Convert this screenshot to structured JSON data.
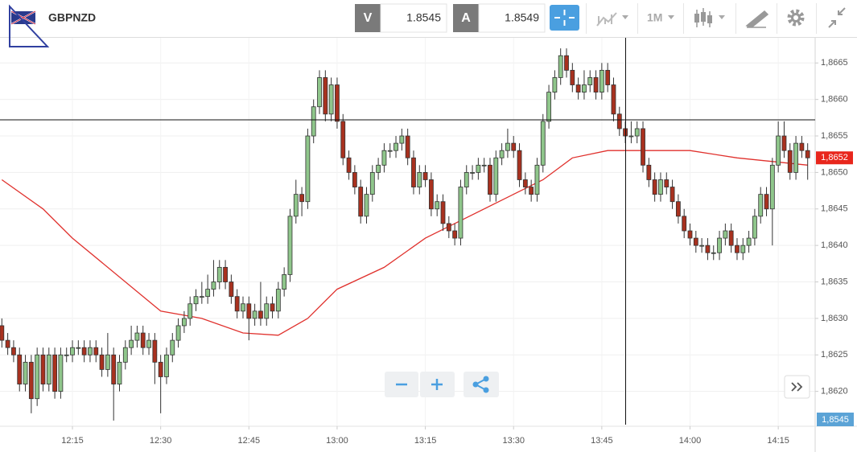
{
  "toolbar": {
    "symbol": "GBPNZD",
    "bid_label": "V",
    "bid": 1.8545,
    "ask_label": "A",
    "ask": 1.8549,
    "timeframe": "1M"
  },
  "bid_tag": "1,8545",
  "chart_data": {
    "type": "candlestick",
    "up_color": "#8fc68b",
    "down_color": "#a8311f",
    "x": [
      "12:03",
      "12:04",
      "12:05",
      "12:06",
      "12:07",
      "12:08",
      "12:09",
      "12:10",
      "12:11",
      "12:12",
      "12:13",
      "12:14",
      "12:15",
      "12:16",
      "12:17",
      "12:18",
      "12:19",
      "12:20",
      "12:21",
      "12:22",
      "12:23",
      "12:24",
      "12:25",
      "12:26",
      "12:27",
      "12:28",
      "12:29",
      "12:30",
      "12:31",
      "12:32",
      "12:33",
      "12:34",
      "12:35",
      "12:36",
      "12:37",
      "12:38",
      "12:39",
      "12:40",
      "12:41",
      "12:42",
      "12:43",
      "12:44",
      "12:45",
      "12:46",
      "12:47",
      "12:48",
      "12:49",
      "12:50",
      "12:51",
      "12:52",
      "12:53",
      "12:54",
      "12:55",
      "12:56",
      "12:57",
      "12:58",
      "12:59",
      "13:00",
      "13:01",
      "13:02",
      "13:03",
      "13:04",
      "13:05",
      "13:06",
      "13:07",
      "13:08",
      "13:09",
      "13:10",
      "13:11",
      "13:12",
      "13:13",
      "13:14",
      "13:15",
      "13:16",
      "13:17",
      "13:18",
      "13:19",
      "13:20",
      "13:21",
      "13:22",
      "13:23",
      "13:24",
      "13:25",
      "13:26",
      "13:27",
      "13:28",
      "13:29",
      "13:30",
      "13:31",
      "13:32",
      "13:33",
      "13:34",
      "13:35",
      "13:36",
      "13:37",
      "13:38",
      "13:39",
      "13:40",
      "13:41",
      "13:42",
      "13:43",
      "13:44",
      "13:45",
      "13:46",
      "13:47",
      "13:48",
      "13:49",
      "13:50",
      "13:51",
      "13:52",
      "13:53",
      "13:54",
      "13:55",
      "13:56",
      "13:57",
      "13:58",
      "13:59",
      "14:00",
      "14:01",
      "14:02",
      "14:03",
      "14:04",
      "14:05",
      "14:06",
      "14:07",
      "14:08",
      "14:09",
      "14:10",
      "14:11",
      "14:12",
      "14:13",
      "14:14",
      "14:15",
      "14:16",
      "14:17",
      "14:18",
      "14:19",
      "14:20"
    ],
    "ohlc": [
      [
        1.8629,
        1.863,
        1.8626,
        1.8627
      ],
      [
        1.8627,
        1.8628,
        1.8625,
        1.8626
      ],
      [
        1.8626,
        1.8627,
        1.8624,
        1.8625
      ],
      [
        1.8625,
        1.8626,
        1.862,
        1.8621
      ],
      [
        1.8621,
        1.8625,
        1.862,
        1.8624
      ],
      [
        1.8624,
        1.8625,
        1.8617,
        1.8619
      ],
      [
        1.8619,
        1.8626,
        1.8618,
        1.8625
      ],
      [
        1.8625,
        1.8626,
        1.862,
        1.8621
      ],
      [
        1.8621,
        1.8626,
        1.862,
        1.8625
      ],
      [
        1.8625,
        1.8626,
        1.8619,
        1.862
      ],
      [
        1.862,
        1.8626,
        1.8619,
        1.8625
      ],
      [
        1.8625,
        1.8626,
        1.8624,
        1.8625
      ],
      [
        1.8625,
        1.8627,
        1.8624,
        1.8626
      ],
      [
        1.8626,
        1.8627,
        1.8625,
        1.8626
      ],
      [
        1.8626,
        1.8627,
        1.8624,
        1.8625
      ],
      [
        1.8625,
        1.8627,
        1.8624,
        1.8626
      ],
      [
        1.8626,
        1.8627,
        1.8624,
        1.8625
      ],
      [
        1.8625,
        1.8626,
        1.8622,
        1.8623
      ],
      [
        1.8623,
        1.8628,
        1.8622,
        1.8625
      ],
      [
        1.8625,
        1.8626,
        1.8616,
        1.8621
      ],
      [
        1.8621,
        1.8625,
        1.862,
        1.8624
      ],
      [
        1.8624,
        1.8627,
        1.8623,
        1.8626
      ],
      [
        1.8626,
        1.8629,
        1.8625,
        1.8627
      ],
      [
        1.8627,
        1.8629,
        1.8626,
        1.8628
      ],
      [
        1.8628,
        1.8629,
        1.8625,
        1.8626
      ],
      [
        1.8626,
        1.8628,
        1.8625,
        1.8627
      ],
      [
        1.8627,
        1.8628,
        1.8621,
        1.8624
      ],
      [
        1.8624,
        1.8625,
        1.8617,
        1.8622
      ],
      [
        1.8622,
        1.8626,
        1.8621,
        1.8625
      ],
      [
        1.8625,
        1.8628,
        1.8624,
        1.8627
      ],
      [
        1.8627,
        1.863,
        1.8626,
        1.8629
      ],
      [
        1.8629,
        1.8631,
        1.8628,
        1.863
      ],
      [
        1.863,
        1.8633,
        1.8629,
        1.8632
      ],
      [
        1.8632,
        1.8634,
        1.8631,
        1.8633
      ],
      [
        1.8633,
        1.8635,
        1.8632,
        1.8633
      ],
      [
        1.8633,
        1.8636,
        1.8632,
        1.8634
      ],
      [
        1.8634,
        1.8638,
        1.8633,
        1.8635
      ],
      [
        1.8635,
        1.8638,
        1.8634,
        1.8637
      ],
      [
        1.8637,
        1.8638,
        1.8634,
        1.8635
      ],
      [
        1.8635,
        1.8636,
        1.8632,
        1.8633
      ],
      [
        1.8633,
        1.8634,
        1.863,
        1.8631
      ],
      [
        1.8631,
        1.8633,
        1.863,
        1.8632
      ],
      [
        1.8632,
        1.8633,
        1.8627,
        1.863
      ],
      [
        1.863,
        1.8632,
        1.8629,
        1.8631
      ],
      [
        1.8631,
        1.8635,
        1.8629,
        1.863
      ],
      [
        1.863,
        1.8633,
        1.8629,
        1.8632
      ],
      [
        1.8632,
        1.8633,
        1.863,
        1.8631
      ],
      [
        1.8631,
        1.8635,
        1.863,
        1.8634
      ],
      [
        1.8634,
        1.8637,
        1.8633,
        1.8636
      ],
      [
        1.8636,
        1.8645,
        1.8635,
        1.8644
      ],
      [
        1.8644,
        1.8649,
        1.8643,
        1.8647
      ],
      [
        1.8647,
        1.8648,
        1.8644,
        1.8646
      ],
      [
        1.8646,
        1.8656,
        1.8645,
        1.8655
      ],
      [
        1.8655,
        1.866,
        1.8654,
        1.8659
      ],
      [
        1.8659,
        1.8664,
        1.8658,
        1.8663
      ],
      [
        1.8663,
        1.8664,
        1.8657,
        1.8658
      ],
      [
        1.8658,
        1.8663,
        1.8657,
        1.8662
      ],
      [
        1.8662,
        1.8663,
        1.8656,
        1.8657
      ],
      [
        1.8657,
        1.8658,
        1.8651,
        1.8652
      ],
      [
        1.8652,
        1.8653,
        1.8649,
        1.865
      ],
      [
        1.865,
        1.8651,
        1.8647,
        1.8648
      ],
      [
        1.8648,
        1.8649,
        1.8643,
        1.8644
      ],
      [
        1.8644,
        1.8648,
        1.8643,
        1.8647
      ],
      [
        1.8647,
        1.8651,
        1.8646,
        1.865
      ],
      [
        1.865,
        1.8652,
        1.8649,
        1.8651
      ],
      [
        1.8651,
        1.8654,
        1.865,
        1.8653
      ],
      [
        1.8653,
        1.8654,
        1.8652,
        1.8653
      ],
      [
        1.8653,
        1.8655,
        1.8652,
        1.8654
      ],
      [
        1.8654,
        1.8656,
        1.8653,
        1.8655
      ],
      [
        1.8655,
        1.8656,
        1.8651,
        1.8652
      ],
      [
        1.8652,
        1.8653,
        1.8647,
        1.8648
      ],
      [
        1.8648,
        1.8651,
        1.8647,
        1.865
      ],
      [
        1.865,
        1.8651,
        1.8648,
        1.8649
      ],
      [
        1.8649,
        1.865,
        1.8644,
        1.8645
      ],
      [
        1.8645,
        1.8647,
        1.8644,
        1.8646
      ],
      [
        1.8646,
        1.8647,
        1.8642,
        1.8643
      ],
      [
        1.8643,
        1.8644,
        1.8641,
        1.8642
      ],
      [
        1.8642,
        1.8643,
        1.864,
        1.8641
      ],
      [
        1.8641,
        1.8649,
        1.864,
        1.8648
      ],
      [
        1.8648,
        1.8651,
        1.8647,
        1.865
      ],
      [
        1.865,
        1.8651,
        1.8649,
        1.865
      ],
      [
        1.865,
        1.8652,
        1.8649,
        1.8651
      ],
      [
        1.8651,
        1.8652,
        1.865,
        1.8651
      ],
      [
        1.8651,
        1.8652,
        1.8646,
        1.8647
      ],
      [
        1.8647,
        1.8653,
        1.8646,
        1.8652
      ],
      [
        1.8652,
        1.8654,
        1.8651,
        1.8653
      ],
      [
        1.8653,
        1.8656,
        1.8652,
        1.8654
      ],
      [
        1.8654,
        1.8655,
        1.8652,
        1.8653
      ],
      [
        1.8653,
        1.8654,
        1.8648,
        1.8649
      ],
      [
        1.8649,
        1.865,
        1.8647,
        1.8648
      ],
      [
        1.8648,
        1.8649,
        1.8646,
        1.8647
      ],
      [
        1.8647,
        1.8652,
        1.8646,
        1.8651
      ],
      [
        1.8651,
        1.8658,
        1.865,
        1.8657
      ],
      [
        1.8657,
        1.8662,
        1.8656,
        1.8661
      ],
      [
        1.8661,
        1.8664,
        1.866,
        1.8663
      ],
      [
        1.8663,
        1.8667,
        1.8662,
        1.8666
      ],
      [
        1.8666,
        1.8667,
        1.8663,
        1.8664
      ],
      [
        1.8664,
        1.8665,
        1.8661,
        1.8662
      ],
      [
        1.8662,
        1.8663,
        1.866,
        1.8661
      ],
      [
        1.8661,
        1.8664,
        1.866,
        1.8662
      ],
      [
        1.8662,
        1.8664,
        1.8661,
        1.8663
      ],
      [
        1.8663,
        1.8664,
        1.866,
        1.8661
      ],
      [
        1.8661,
        1.8665,
        1.866,
        1.8664
      ],
      [
        1.8664,
        1.8665,
        1.8661,
        1.8662
      ],
      [
        1.8662,
        1.8663,
        1.8657,
        1.8658
      ],
      [
        1.8658,
        1.8659,
        1.8655,
        1.8656
      ],
      [
        1.8656,
        1.8657,
        1.8654,
        1.8655
      ],
      [
        1.8655,
        1.8657,
        1.8654,
        1.8655
      ],
      [
        1.8655,
        1.8657,
        1.8654,
        1.8656
      ],
      [
        1.8656,
        1.8657,
        1.865,
        1.8651
      ],
      [
        1.8651,
        1.8652,
        1.8648,
        1.8649
      ],
      [
        1.8649,
        1.865,
        1.8646,
        1.8647
      ],
      [
        1.8647,
        1.865,
        1.8646,
        1.8649
      ],
      [
        1.8649,
        1.865,
        1.8647,
        1.8648
      ],
      [
        1.8648,
        1.8649,
        1.8645,
        1.8646
      ],
      [
        1.8646,
        1.8647,
        1.8643,
        1.8644
      ],
      [
        1.8644,
        1.8645,
        1.8641,
        1.8642
      ],
      [
        1.8642,
        1.8643,
        1.864,
        1.8641
      ],
      [
        1.8641,
        1.8642,
        1.8639,
        1.864
      ],
      [
        1.864,
        1.8641,
        1.8639,
        1.864
      ],
      [
        1.864,
        1.8641,
        1.8638,
        1.8639
      ],
      [
        1.8639,
        1.864,
        1.8638,
        1.8639
      ],
      [
        1.8639,
        1.8642,
        1.8638,
        1.8641
      ],
      [
        1.8641,
        1.8643,
        1.864,
        1.8642
      ],
      [
        1.8642,
        1.8643,
        1.8639,
        1.864
      ],
      [
        1.864,
        1.8641,
        1.8638,
        1.8639
      ],
      [
        1.8639,
        1.8641,
        1.8638,
        1.864
      ],
      [
        1.864,
        1.8642,
        1.8639,
        1.8641
      ],
      [
        1.8641,
        1.8645,
        1.864,
        1.8644
      ],
      [
        1.8644,
        1.8648,
        1.8643,
        1.8647
      ],
      [
        1.8647,
        1.8648,
        1.8644,
        1.8645
      ],
      [
        1.8645,
        1.8652,
        1.864,
        1.8651
      ],
      [
        1.8651,
        1.8657,
        1.865,
        1.8655
      ],
      [
        1.8655,
        1.8657,
        1.8652,
        1.8653
      ],
      [
        1.8653,
        1.8654,
        1.8649,
        1.865
      ],
      [
        1.865,
        1.8655,
        1.8649,
        1.8654
      ],
      [
        1.8654,
        1.8655,
        1.8652,
        1.8653
      ],
      [
        1.8653,
        1.8654,
        1.8649,
        1.8652
      ]
    ],
    "ma": {
      "color": "#e0312d",
      "x": [
        "12:03",
        "12:10",
        "12:15",
        "12:30",
        "12:37",
        "12:44",
        "12:50",
        "12:55",
        "13:00",
        "13:08",
        "13:15",
        "13:20",
        "13:30",
        "13:35",
        "13:40",
        "13:46",
        "13:51",
        "14:00",
        "14:08",
        "14:20"
      ],
      "values": [
        1.8649,
        1.8645,
        1.8641,
        1.8631,
        1.863,
        1.8628,
        1.86277,
        1.863,
        1.8634,
        1.8637,
        1.8641,
        1.8643,
        1.8647,
        1.8649,
        1.8652,
        1.8653,
        1.8653,
        1.8653,
        1.8652,
        1.8651
      ]
    },
    "last_price": {
      "value": 1.8652,
      "label": "1,8652",
      "color": "#e8261c"
    },
    "xlim": [
      "12:02",
      "14:21"
    ],
    "xticks": [
      "12:15",
      "12:30",
      "12:45",
      "13:00",
      "13:15",
      "13:30",
      "13:45",
      "14:00",
      "14:15"
    ],
    "ylim": [
      1.8615,
      1.8669
    ],
    "yticks": [
      {
        "value": 1.862,
        "label": "1,8620"
      },
      {
        "value": 1.8625,
        "label": "1,8625"
      },
      {
        "value": 1.863,
        "label": "1,8630"
      },
      {
        "value": 1.8635,
        "label": "1,8635"
      },
      {
        "value": 1.864,
        "label": "1,8640"
      },
      {
        "value": 1.8645,
        "label": "1,8645"
      },
      {
        "value": 1.865,
        "label": "1,8650"
      },
      {
        "value": 1.8655,
        "label": "1,8655"
      },
      {
        "value": 1.866,
        "label": "1,8660"
      },
      {
        "value": 1.8665,
        "label": "1,8665"
      }
    ],
    "grid": true
  }
}
